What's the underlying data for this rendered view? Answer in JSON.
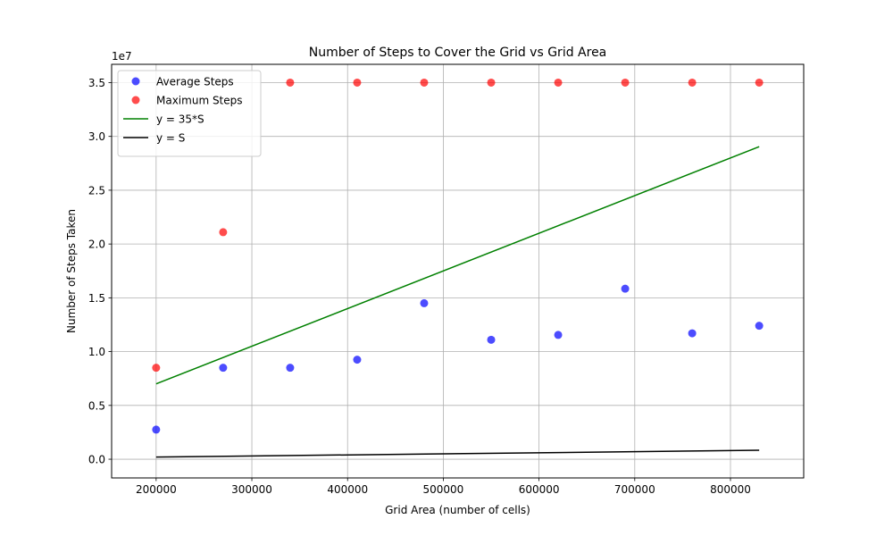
{
  "chart_data": {
    "type": "scatter",
    "title": "Number of Steps to Cover the Grid vs Grid Area",
    "xlabel": "Grid Area (number of cells)",
    "ylabel": "Number of Steps Taken",
    "y_offset_label": "1e7",
    "xlim": [
      153500,
      876500
    ],
    "ylim": [
      -1740000,
      36700000
    ],
    "grid": true,
    "legend_position": "top-left",
    "x_ticks": [
      200000,
      300000,
      400000,
      500000,
      600000,
      700000,
      800000
    ],
    "x_tick_labels": [
      "200000",
      "300000",
      "400000",
      "500000",
      "600000",
      "700000",
      "800000"
    ],
    "y_ticks": [
      0,
      5000000,
      10000000,
      15000000,
      20000000,
      25000000,
      30000000,
      35000000
    ],
    "y_tick_labels": [
      "0.0",
      "0.5",
      "1.0",
      "1.5",
      "2.0",
      "2.5",
      "3.0",
      "3.5"
    ],
    "x": [
      200000,
      270000,
      340000,
      410000,
      480000,
      550000,
      620000,
      690000,
      760000,
      830000
    ],
    "series": [
      {
        "name": "Average Steps",
        "kind": "scatter",
        "color": "#0000ff",
        "values": [
          2750000,
          8500000,
          8500000,
          9250000,
          14500000,
          11100000,
          11550000,
          15850000,
          11700000,
          12400000
        ]
      },
      {
        "name": "Maximum Steps",
        "kind": "scatter",
        "color": "#ff0000",
        "values": [
          8500000,
          21100000,
          35000000,
          35000000,
          35000000,
          35000000,
          35000000,
          35000000,
          35000000,
          35000000
        ]
      },
      {
        "name": "y = 35*S",
        "kind": "line",
        "color": "#008000",
        "x": [
          200000,
          830000
        ],
        "values": [
          7000000,
          29050000
        ]
      },
      {
        "name": "y = S",
        "kind": "line",
        "color": "#000000",
        "x": [
          200000,
          830000
        ],
        "values": [
          200000,
          830000
        ]
      }
    ]
  }
}
